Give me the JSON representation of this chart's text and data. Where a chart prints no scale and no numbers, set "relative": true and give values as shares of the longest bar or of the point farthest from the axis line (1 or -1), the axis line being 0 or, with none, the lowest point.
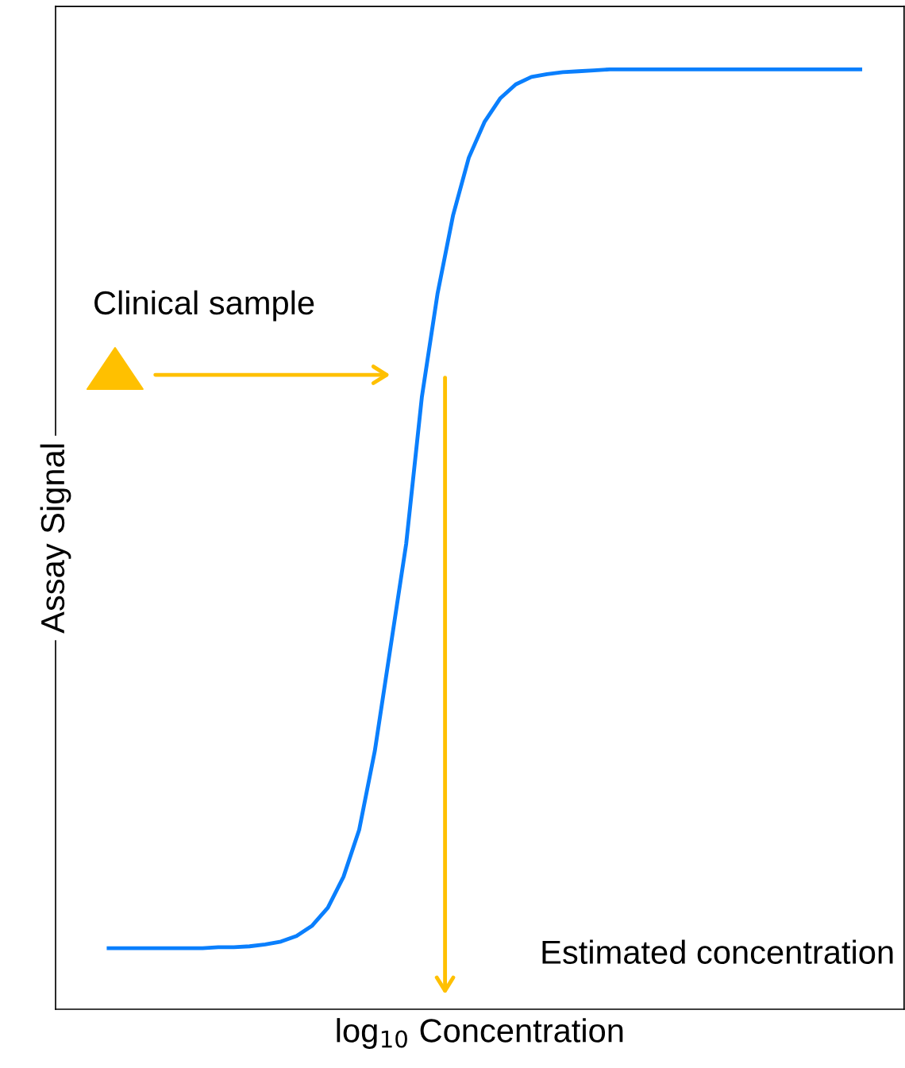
{
  "chart_data": {
    "type": "line",
    "relative": true,
    "xlabel": "log$_{10}$ Concentration",
    "ylabel": "Assay Signal",
    "categories": [
      null,
      null,
      null,
      null,
      null,
      null,
      null,
      null,
      null,
      null,
      null,
      null,
      null,
      null,
      null,
      null,
      null,
      null,
      null,
      null,
      null,
      null,
      null,
      null,
      null,
      null,
      null,
      null,
      null,
      null,
      null,
      null,
      null,
      null,
      null,
      null,
      null,
      null,
      null,
      null,
      null,
      null,
      null,
      null,
      null,
      null,
      null,
      null,
      null
    ],
    "series": [
      {
        "color": "#0a7ffd",
        "values": [
          0.065,
          0.065,
          0.065,
          0.065,
          0.065,
          0.065,
          0.065,
          0.066,
          0.066,
          0.067,
          0.069,
          0.072,
          0.078,
          0.089,
          0.108,
          0.141,
          0.191,
          0.275,
          0.385,
          0.495,
          0.651,
          0.761,
          0.845,
          0.906,
          0.944,
          0.969,
          0.984,
          0.992,
          0.995,
          0.997,
          0.998,
          0.999,
          1,
          1,
          1,
          1,
          1,
          1,
          1,
          1,
          1,
          1,
          1,
          1,
          1,
          1,
          1,
          1,
          1
        ]
      }
    ],
    "annotations": [
      "Clinical sample",
      "Estimated concentration"
    ],
    "grid": false,
    "legend": false,
    "tick_labels": false
  }
}
